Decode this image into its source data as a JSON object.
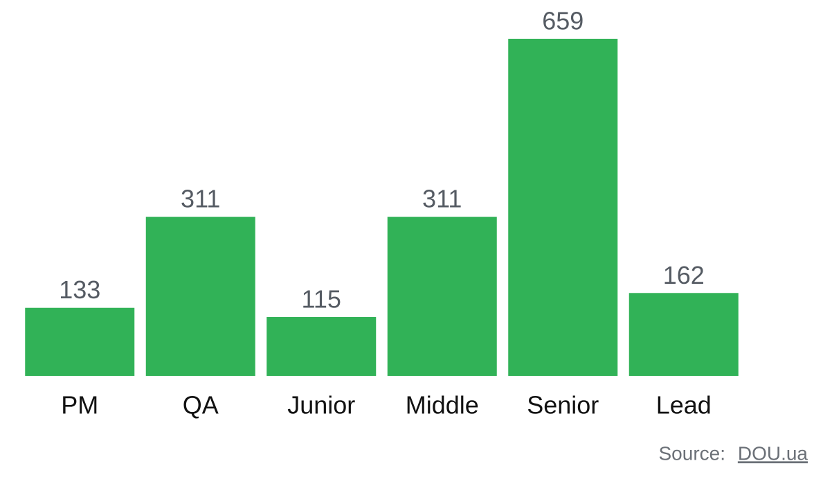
{
  "chart_data": {
    "type": "bar",
    "categories": [
      "PM",
      "QA",
      "Junior",
      "Middle",
      "Senior",
      "Lead"
    ],
    "values": [
      133,
      311,
      115,
      311,
      659,
      162
    ],
    "color": "#31b257"
  },
  "source": {
    "label": "Source:",
    "link": "DOU.ua"
  }
}
